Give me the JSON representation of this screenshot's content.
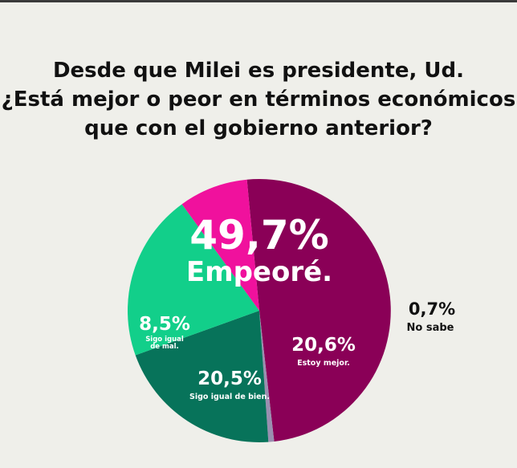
{
  "title_lines": [
    "Desde que Milei es presidente, Ud.",
    "¿Está mejor o peor en términos económicos",
    "que con el gobierno anterior?"
  ],
  "chart_data": {
    "type": "pie",
    "title": "Desde que Milei es presidente, Ud. ¿Está mejor o peor en términos económicos que con el gobierno anterior?",
    "slices": [
      {
        "label": "Empeoré.",
        "value": 49.7,
        "pct_text": "49,7%",
        "color": "#8a0057"
      },
      {
        "label": "No sabe",
        "value": 0.7,
        "pct_text": "0,7%",
        "color": "#9a8fb0"
      },
      {
        "label": "Estoy mejor.",
        "value": 20.6,
        "pct_text": "20,6%",
        "color": "#07735a"
      },
      {
        "label": "Sigo igual de bien.",
        "value": 20.5,
        "pct_text": "20,5%",
        "color": "#12cf8a"
      },
      {
        "label": "Sigo igual de mal.",
        "value": 8.5,
        "pct_text": "8,5%",
        "color": "#f0119d"
      }
    ]
  }
}
